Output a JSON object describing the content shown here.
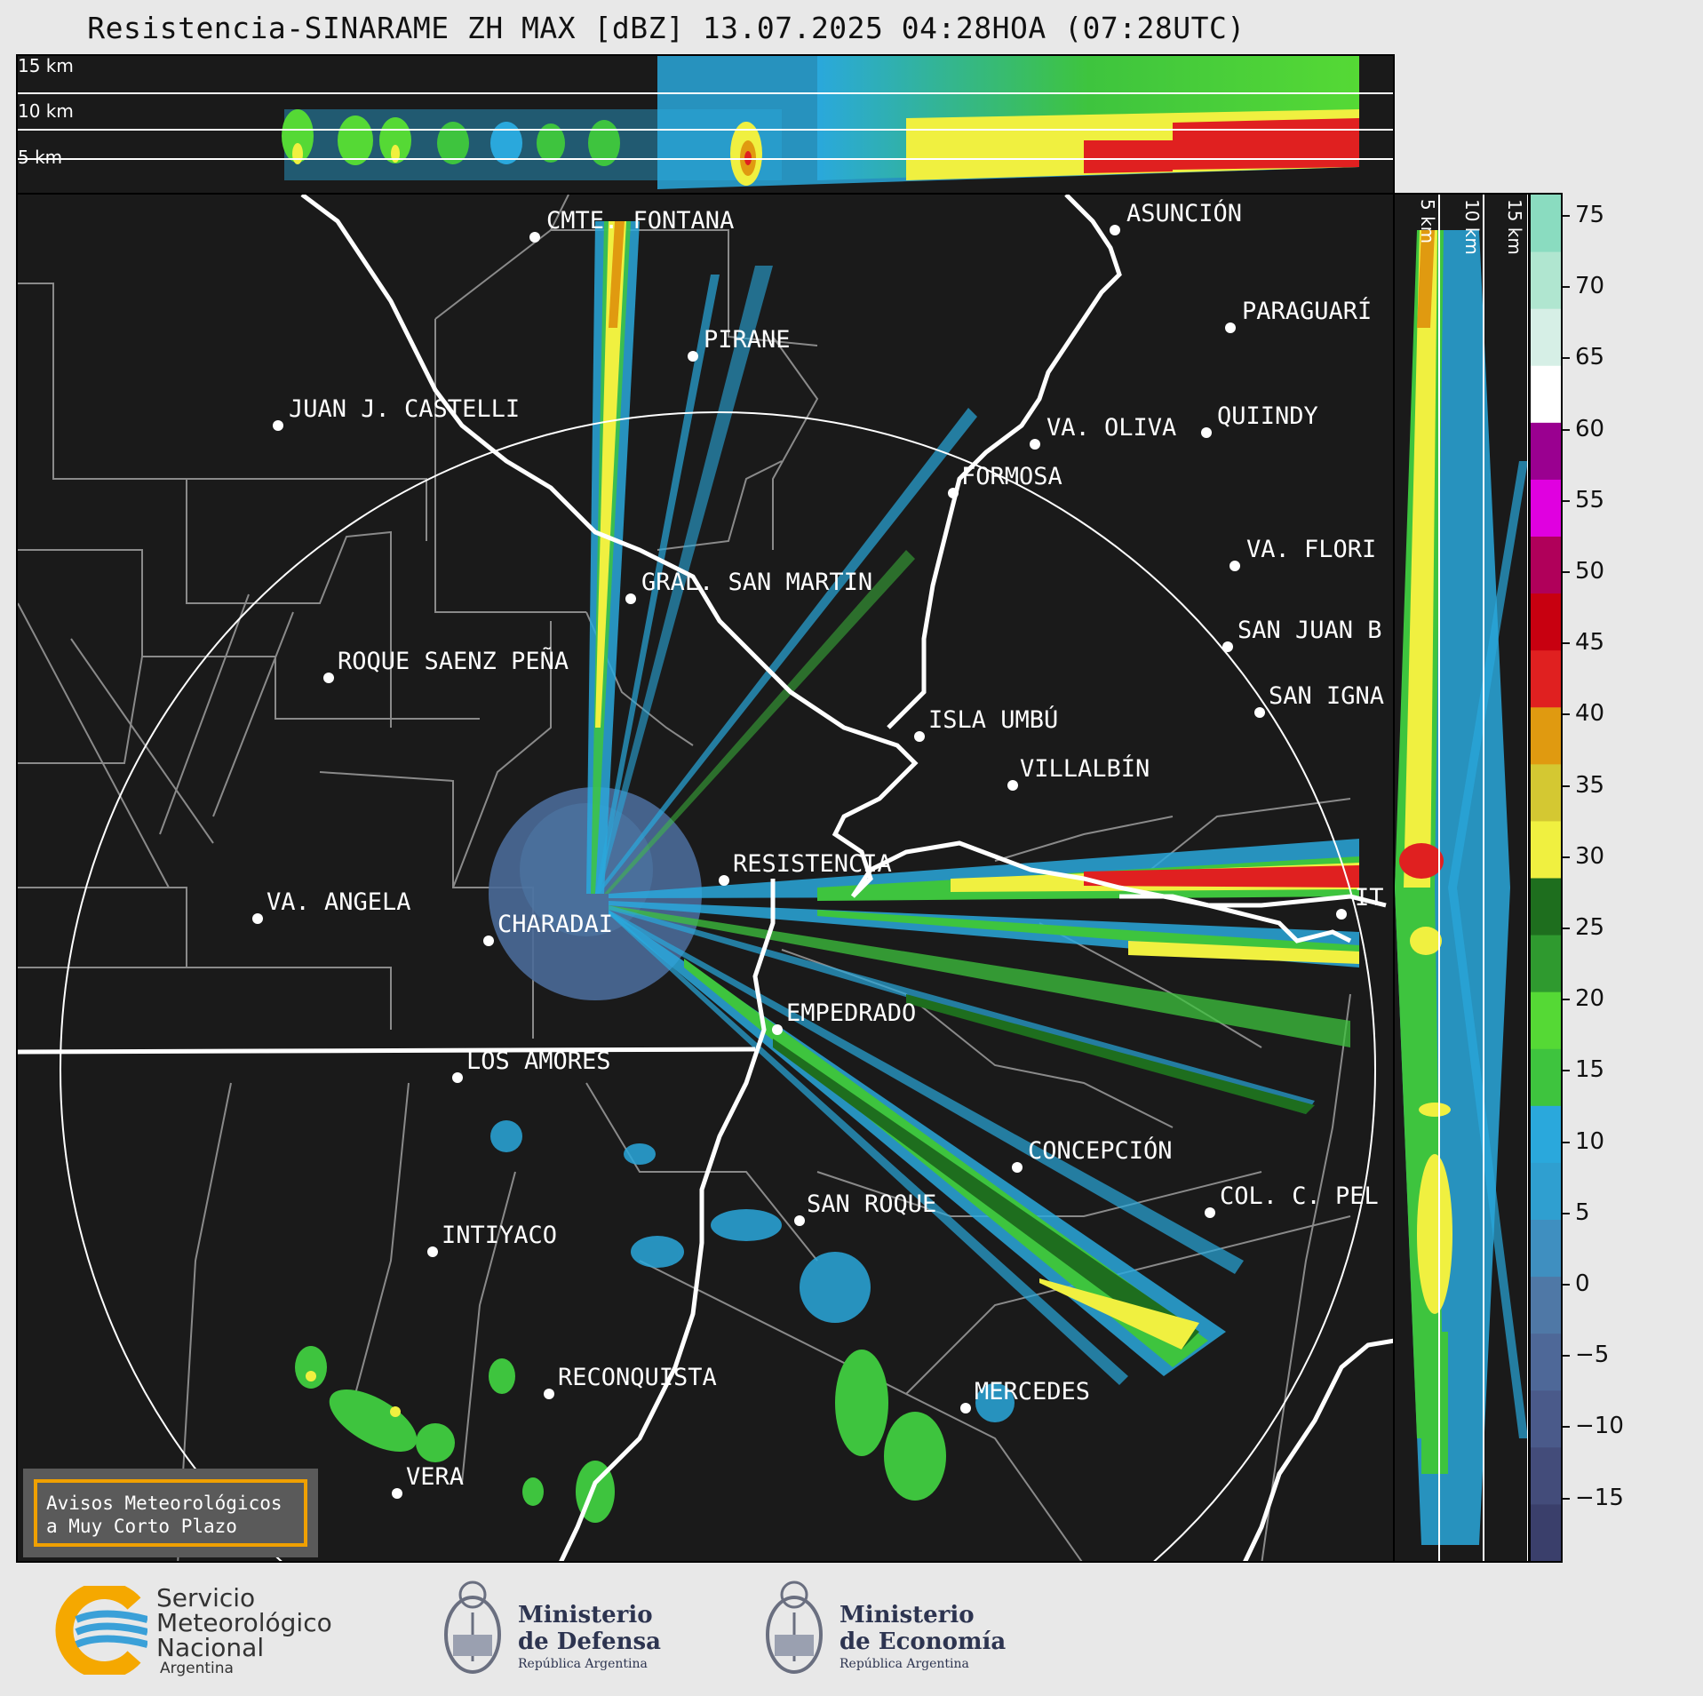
{
  "title": "Resistencia-SINARAME ZH MAX [dBZ] 13.07.2025 04:28HOA (07:28UTC)",
  "top_panel": {
    "height_labels": [
      "15 km",
      "10 km",
      "5 km"
    ]
  },
  "side_panel": {
    "height_labels": [
      "5 km",
      "10 km",
      "15 km"
    ]
  },
  "colorbar": {
    "ticks": [
      "75",
      "70",
      "65",
      "60",
      "55",
      "50",
      "45",
      "40",
      "35",
      "30",
      "25",
      "20",
      "15",
      "10",
      "5",
      "0",
      "−5",
      "−10",
      "−15"
    ],
    "colors": [
      "#3a3f6b",
      "#434c7a",
      "#4a5a8a",
      "#4e6898",
      "#4f78a6",
      "#3f8fc0",
      "#2f9fd0",
      "#2aa8dc",
      "#3ec43e",
      "#55d935",
      "#2f9a2f",
      "#1e6e1e",
      "#f0f040",
      "#d4c832",
      "#e09a10",
      "#e02020",
      "#c80010",
      "#b0005a",
      "#e000e0",
      "#9a0090",
      "#ffffff",
      "#d6efe6",
      "#b0e6d0",
      "#8adcc0"
    ]
  },
  "cities": [
    {
      "name": "CMTE. FONTANA"
    },
    {
      "name": "ASUNCIÓN"
    },
    {
      "name": "PIRANE"
    },
    {
      "name": "PARAGUARÍ"
    },
    {
      "name": "JUAN J. CASTELLI"
    },
    {
      "name": "VA. OLIVA"
    },
    {
      "name": "QUIINDY"
    },
    {
      "name": "FORMOSA"
    },
    {
      "name": "VA. FLORI"
    },
    {
      "name": "GRAL. SAN MARTIN"
    },
    {
      "name": "SAN JUAN B"
    },
    {
      "name": "ROQUE SAENZ PEÑA"
    },
    {
      "name": "SAN IGNA"
    },
    {
      "name": "ISLA UMBÚ"
    },
    {
      "name": "VILLALBÍN"
    },
    {
      "name": "RESISTENCIA"
    },
    {
      "name": "VA. ANGELA"
    },
    {
      "name": "CHARADAI"
    },
    {
      "name": "IT"
    },
    {
      "name": "EMPEDRADO"
    },
    {
      "name": "LOS AMORES"
    },
    {
      "name": "CONCEPCIÓN"
    },
    {
      "name": "COL. C. PEL"
    },
    {
      "name": "SAN ROQUE"
    },
    {
      "name": "INTIYACO"
    },
    {
      "name": "RECONQUISTA"
    },
    {
      "name": "MERCEDES"
    },
    {
      "name": "VERA"
    }
  ],
  "notice": {
    "line1": "Avisos Meteorológicos",
    "line2": "a Muy Corto Plazo"
  },
  "logos": {
    "smn": {
      "line1": "Servicio",
      "line2": "Meteorológico",
      "line3": "Nacional",
      "line4": "Argentina"
    },
    "defensa": {
      "line1": "Ministerio",
      "line2": "de Defensa",
      "line3": "República Argentina"
    },
    "economia": {
      "line1": "Ministerio",
      "line2": "de Economía",
      "line3": "República Argentina"
    }
  }
}
